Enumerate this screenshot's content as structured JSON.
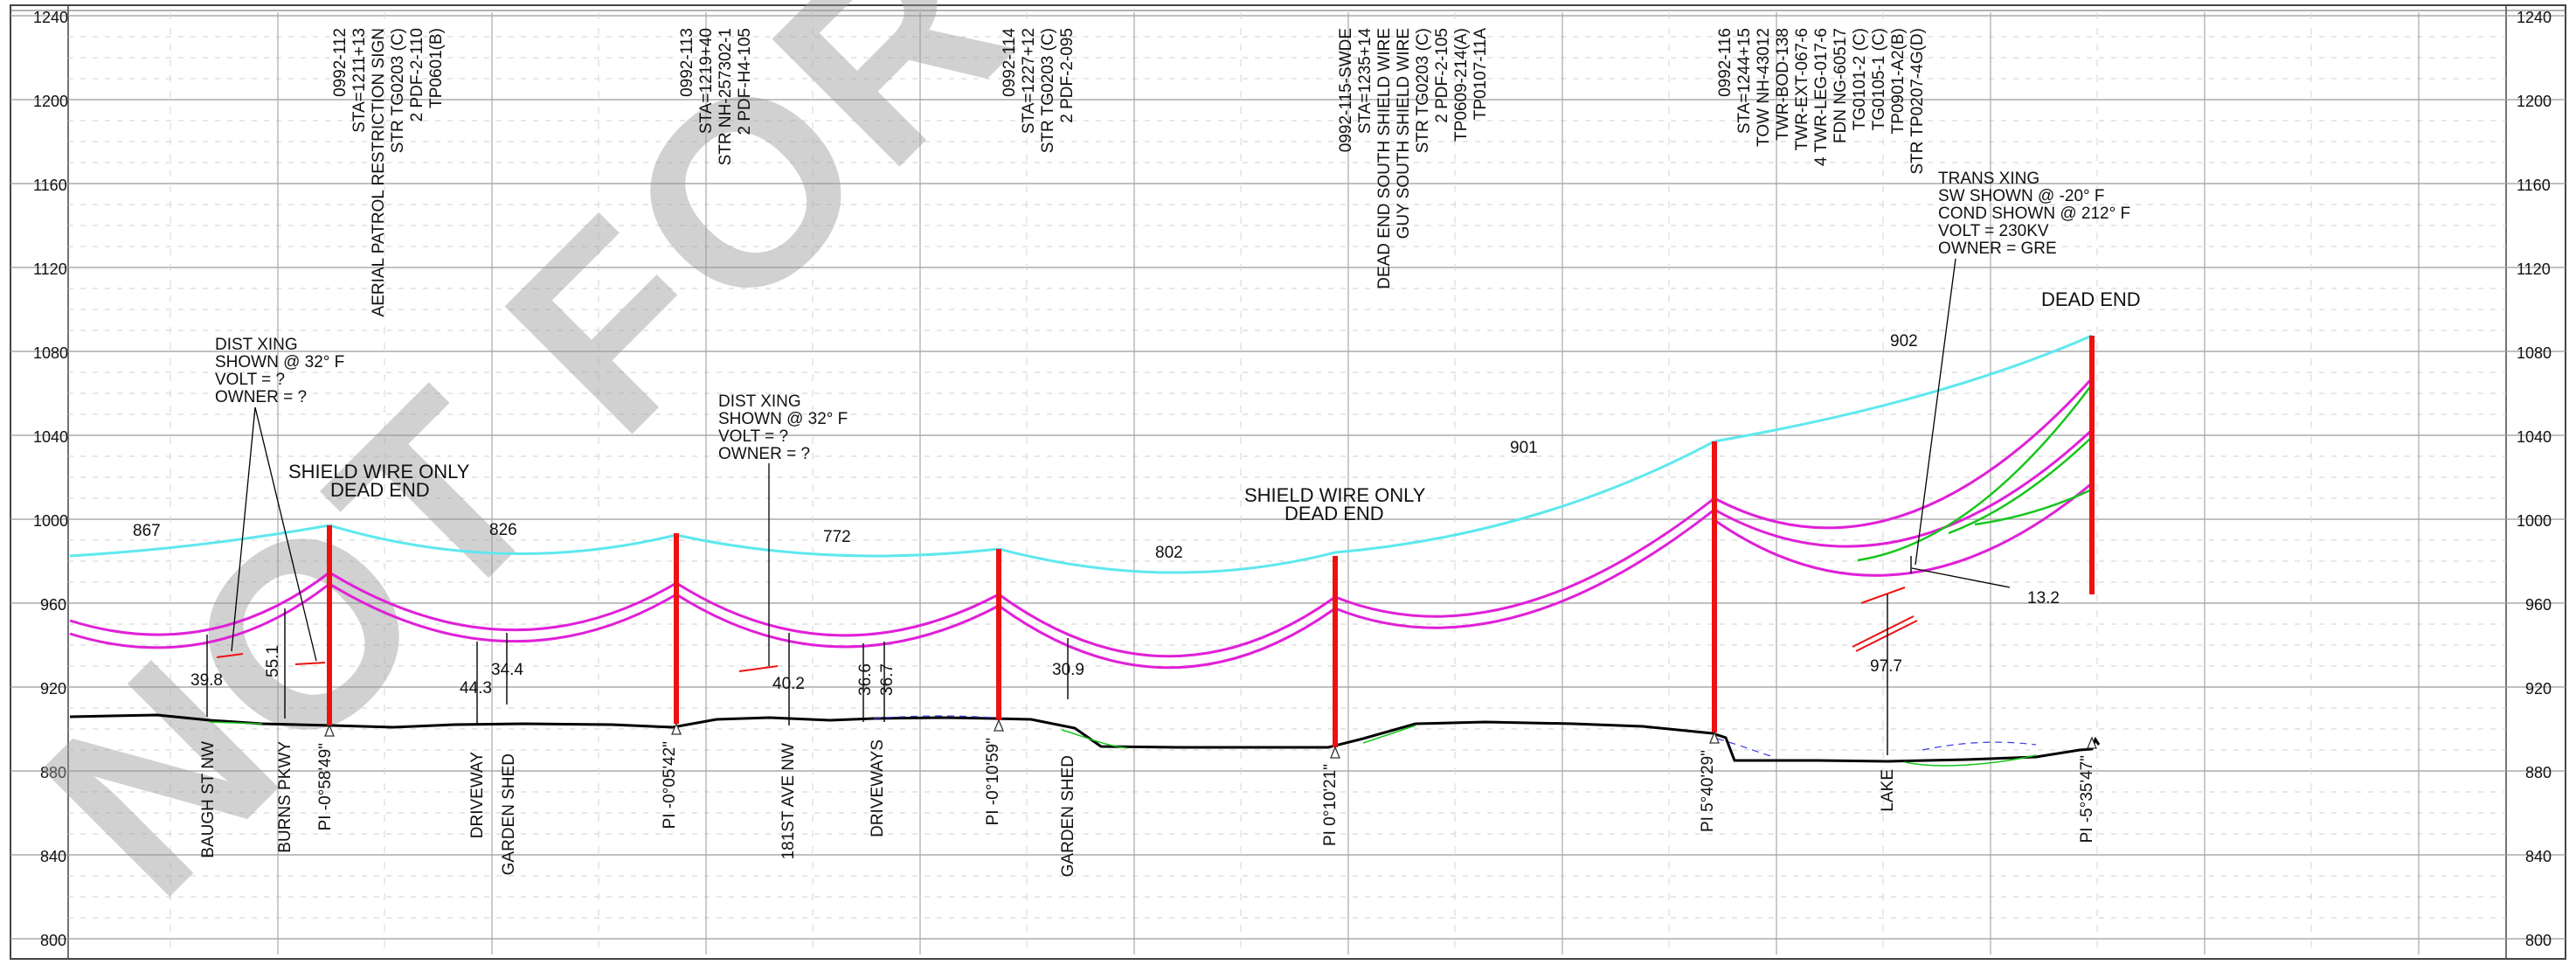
{
  "drawing": {
    "watermark": "NOT FOR CONST",
    "elevations_left": [
      "1240",
      "1200",
      "1160",
      "1120",
      "1080",
      "1040",
      "1000",
      "960",
      "920",
      "880",
      "840",
      "800"
    ],
    "elevations_right": [
      "1240",
      "1200",
      "1160",
      "1120",
      "1080",
      "1040",
      "1000",
      "960",
      "920",
      "880",
      "840",
      "800"
    ],
    "structures": [
      {
        "lines": [
          "0992-112",
          "STA=1211+13",
          "STR TG0203 (C)",
          "2 PDF-2-110",
          "TP0601(B)"
        ],
        "extra": "AERIAL PATROL RESTRICTION SIGN",
        "pi": "PI -0°58'49\""
      },
      {
        "lines": [
          "0992-113",
          "STA=1219+40",
          "STR NH-257302-1",
          "2 PDF-H4-105"
        ],
        "pi": "PI -0°05'42\""
      },
      {
        "lines": [
          "0992-114",
          "STA=1227+12",
          "STR TG0203 (C)",
          "2 PDF-2-095"
        ],
        "pi": "PI -0°10'59\""
      },
      {
        "lines": [
          "0992-115-SWDE",
          "STA=1235+14",
          "DEAD END SOUTH SHIELD WIRE",
          "GUY SOUTH SHIELD WIRE",
          "STR TG0203 (C)",
          "2 PDF-2-105",
          "TP0609-214(A)",
          "TP0107-11A"
        ],
        "pi": "PI 0°10'21\""
      },
      {
        "lines": [
          "0992-116",
          "STA=1244+15",
          "TOW NH-43012",
          "TWR-BOD-138",
          "TWR-EXT-067-6",
          "4 TWR-LEG-017-6",
          "FDN NG-60517",
          "TG0101-2 (C)",
          "TG0105-1 (C)",
          "TP0901-A2(B)",
          "STR TP0207-4G(D)"
        ],
        "pi": "PI 5°40'29\""
      },
      {
        "pi": "PI -5°35'47\""
      }
    ],
    "notes": {
      "dist_xing_1": [
        "DIST XING",
        "SHOWN @ 32° F",
        "VOLT = ?",
        "OWNER = ?"
      ],
      "dist_xing_2": [
        "DIST XING",
        "SHOWN @ 32° F",
        "VOLT = ?",
        "OWNER = ?"
      ],
      "trans_xing": [
        "TRANS XING",
        "SW SHOWN @ -20° F",
        "COND SHOWN @ 212° F",
        "VOLT = 230KV",
        "OWNER = GRE"
      ],
      "shield_only_1": [
        "SHIELD WIRE ONLY",
        "DEAD END"
      ],
      "shield_only_2": [
        "SHIELD WIRE ONLY",
        "DEAD END"
      ],
      "dead_end": "DEAD END"
    },
    "span_labels": [
      "867",
      "826",
      "772",
      "802",
      "901",
      "902"
    ],
    "clearances": [
      "39.8",
      "55.1",
      "44.3",
      "34.4",
      "40.2",
      "36.6",
      "36.7",
      "30.9",
      "13.2",
      "97.7"
    ],
    "ground_features": [
      "BAUGH ST NW",
      "BURNS PKWY",
      "DRIVEWAY",
      "GARDEN SHED",
      "181ST AVE NW",
      "DRIVEWAYS",
      "GARDEN SHED",
      "LAKE"
    ],
    "colors": {
      "shield": "#5ee8ee",
      "conductor": "#e020d8",
      "pole": "#ee1111",
      "ground": "#000000",
      "grid": "#bdbdbd",
      "green": "#17c51b",
      "blue_dash": "#3a3ae0"
    }
  }
}
